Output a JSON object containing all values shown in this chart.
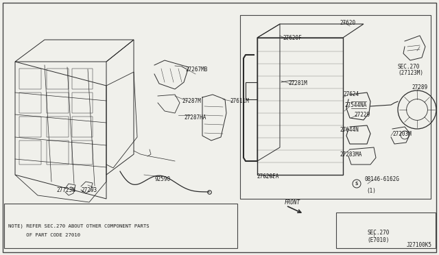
{
  "bg_color": "#f0f0eb",
  "border_color": "#555555",
  "line_color": "#2a2a2a",
  "text_color": "#1a1a1a",
  "title_code": "J27100K5",
  "note_line1": "NOTE) REFER SEC.270 ABOUT OTHER COMPONENT PARTS",
  "note_line2": "      OF PART CODE 27010",
  "fig_width": 6.4,
  "fig_height": 3.72,
  "dpi": 100
}
